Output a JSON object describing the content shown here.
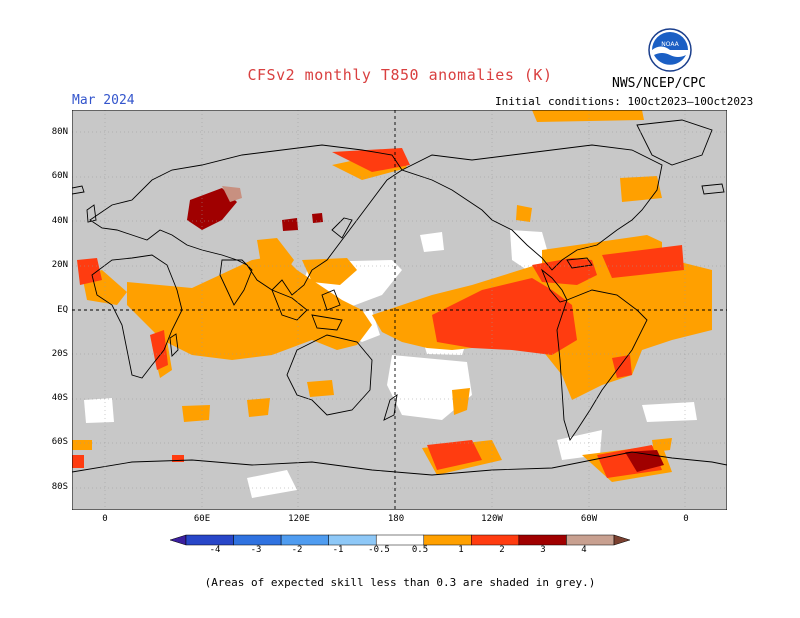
{
  "title": "CFSv2 monthly T850 anomalies (K)",
  "month": "Mar 2024",
  "agency": "NWS/NCEP/CPC",
  "logo_text": "NOAA",
  "initial_conditions": "Initial conditions: 10Oct2023–10Oct2023",
  "footnote": "(Areas of expected skill less than 0.3 are shaded in grey.)",
  "lat_labels": [
    "80N",
    "60N",
    "40N",
    "20N",
    "EQ",
    "20S",
    "40S",
    "60S",
    "80S"
  ],
  "lon_labels": [
    "0",
    "60E",
    "120E",
    "180",
    "120W",
    "60W",
    "0"
  ],
  "colorbar": {
    "labels": [
      "-4",
      "-3",
      "-2",
      "-1",
      "-0.5",
      "0.5",
      "1",
      "2",
      "3",
      "4"
    ],
    "colors": [
      "#3b1f9e",
      "#2846c8",
      "#2f72e0",
      "#4f9cf0",
      "#8ec8f7",
      "#ffffff",
      "#ffa000",
      "#ff3c10",
      "#a00000",
      "#c8a090",
      "#7a4030"
    ]
  },
  "colors": {
    "grey": "#c8c8c8",
    "white": "#ffffff",
    "orange": "#ffa000",
    "red": "#ff3c10",
    "darkred": "#a00000",
    "brown": "#c89080"
  }
}
